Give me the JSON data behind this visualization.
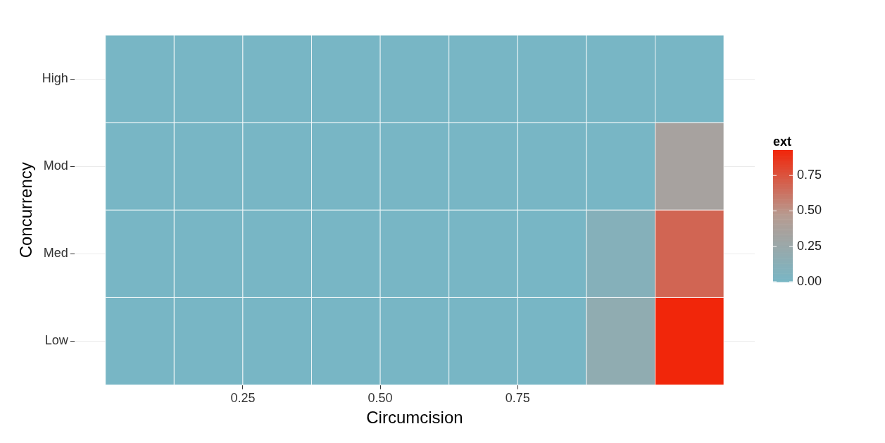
{
  "chart_data": {
    "type": "heatmap",
    "xlabel": "Circumcision",
    "ylabel": "Concurrency",
    "clabel": "ext",
    "x": [
      0.0625,
      0.1875,
      0.3125,
      0.4375,
      0.5625,
      0.6875,
      0.8125,
      0.9375,
      1.0625
    ],
    "xlim": [
      -0.05625,
      1.18125
    ],
    "xticks": [
      {
        "value": 0.25,
        "label": "0.25"
      },
      {
        "value": 0.5,
        "label": "0.50"
      },
      {
        "value": 0.75,
        "label": "0.75"
      }
    ],
    "y_categories": [
      "High",
      "Mod",
      "Med",
      "Low"
    ],
    "cells": [
      [
        0,
        0,
        0,
        0,
        0,
        0,
        0,
        0,
        0
      ],
      [
        0,
        0,
        0,
        0,
        0,
        0,
        0,
        0,
        0.35
      ],
      [
        0,
        0,
        0,
        0,
        0,
        0,
        0,
        0.1,
        0.68
      ],
      [
        0,
        0,
        0,
        0,
        0,
        0,
        0,
        0.18,
        0.93
      ]
    ],
    "clim": [
      0,
      0.93
    ],
    "cticks": [
      {
        "value": 0,
        "label": "0.00"
      },
      {
        "value": 0.25,
        "label": "0.25"
      },
      {
        "value": 0.5,
        "label": "0.50"
      },
      {
        "value": 0.75,
        "label": "0.75"
      }
    ],
    "grid": true
  }
}
